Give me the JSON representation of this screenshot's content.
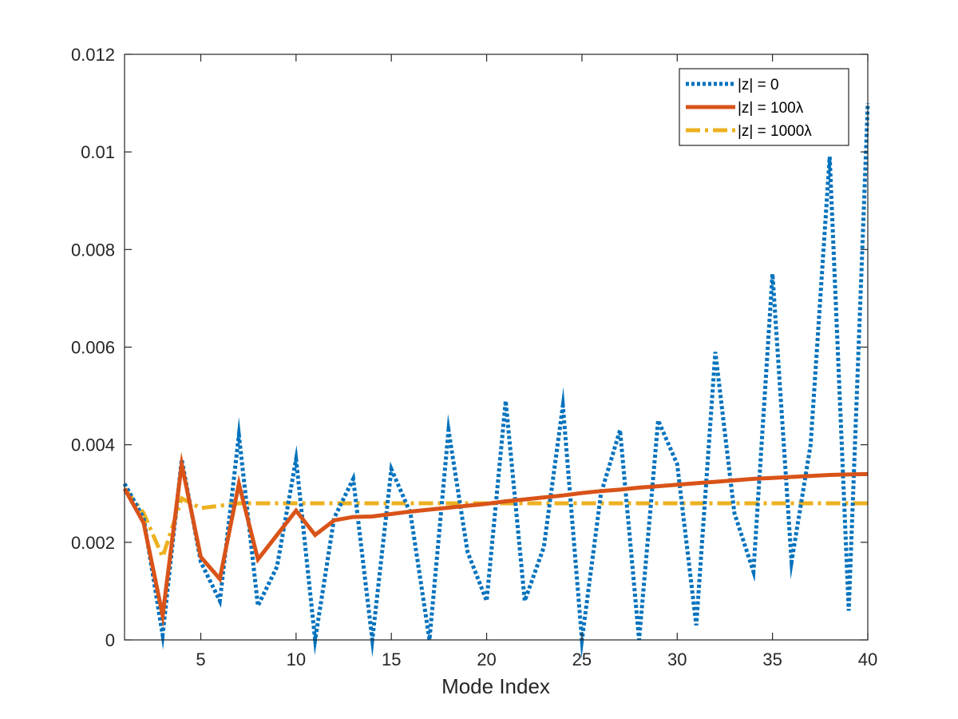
{
  "chart_data": {
    "type": "line",
    "title": "",
    "xlabel": "Mode Index",
    "ylabel": "",
    "xlim": [
      1,
      40
    ],
    "ylim": [
      0,
      0.012
    ],
    "xticks": [
      5,
      10,
      15,
      20,
      25,
      30,
      35,
      40
    ],
    "xtick_labels": [
      "5",
      "10",
      "15",
      "20",
      "25",
      "30",
      "35",
      "40"
    ],
    "yticks": [
      0,
      0.002,
      0.004,
      0.006,
      0.008,
      0.01,
      0.012
    ],
    "ytick_labels": [
      "0",
      "0.002",
      "0.004",
      "0.006",
      "0.008",
      "0.01",
      "0.012"
    ],
    "legend_position": "top-right",
    "x": [
      1,
      2,
      3,
      4,
      5,
      6,
      7,
      8,
      9,
      10,
      11,
      12,
      13,
      14,
      15,
      16,
      17,
      18,
      19,
      20,
      21,
      22,
      23,
      24,
      25,
      26,
      27,
      28,
      29,
      30,
      31,
      32,
      33,
      34,
      35,
      36,
      37,
      38,
      39,
      40
    ],
    "series": [
      {
        "name": "|z| = 0",
        "color": "#0072BD",
        "style": "dotted",
        "values": [
          0.0032,
          0.0025,
          0.0001,
          0.0037,
          0.0016,
          0.0008,
          0.0042,
          0.0007,
          0.0015,
          0.0037,
          0.0,
          0.0025,
          0.0033,
          0.0,
          0.0035,
          0.0026,
          0.0,
          0.0043,
          0.0018,
          0.0008,
          0.0049,
          0.0008,
          0.0019,
          0.0048,
          0.0,
          0.003,
          0.0043,
          0.0,
          0.0045,
          0.0036,
          0.0003,
          0.0059,
          0.0026,
          0.0014,
          0.0075,
          0.0016,
          0.004,
          0.0099,
          0.0006,
          0.011
        ]
      },
      {
        "name": "|z| = 100λ",
        "color": "#D95319",
        "style": "solid",
        "values": [
          0.0031,
          0.0024,
          0.0005,
          0.0036,
          0.0017,
          0.00125,
          0.0032,
          0.00165,
          0.00215,
          0.00265,
          0.00215,
          0.00245,
          0.00252,
          0.00253,
          0.00258,
          0.00263,
          0.00267,
          0.00271,
          0.00275,
          0.00279,
          0.00284,
          0.00288,
          0.00292,
          0.00296,
          0.00301,
          0.00305,
          0.00308,
          0.00312,
          0.00315,
          0.00318,
          0.00321,
          0.00324,
          0.00327,
          0.0033,
          0.00332,
          0.00334,
          0.00336,
          0.00338,
          0.00339,
          0.0034
        ]
      },
      {
        "name": "|z| = 1000λ",
        "color": "#EDB120",
        "style": "dashdot",
        "values": [
          0.0031,
          0.0026,
          0.0017,
          0.0029,
          0.0027,
          0.00275,
          0.0028,
          0.0028,
          0.0028,
          0.0028,
          0.0028,
          0.0028,
          0.0028,
          0.0028,
          0.0028,
          0.0028,
          0.0028,
          0.0028,
          0.0028,
          0.0028,
          0.0028,
          0.0028,
          0.0028,
          0.0028,
          0.0028,
          0.0028,
          0.0028,
          0.0028,
          0.0028,
          0.0028,
          0.0028,
          0.0028,
          0.0028,
          0.0028,
          0.0028,
          0.0028,
          0.0028,
          0.0028,
          0.0028,
          0.0028
        ]
      }
    ]
  }
}
